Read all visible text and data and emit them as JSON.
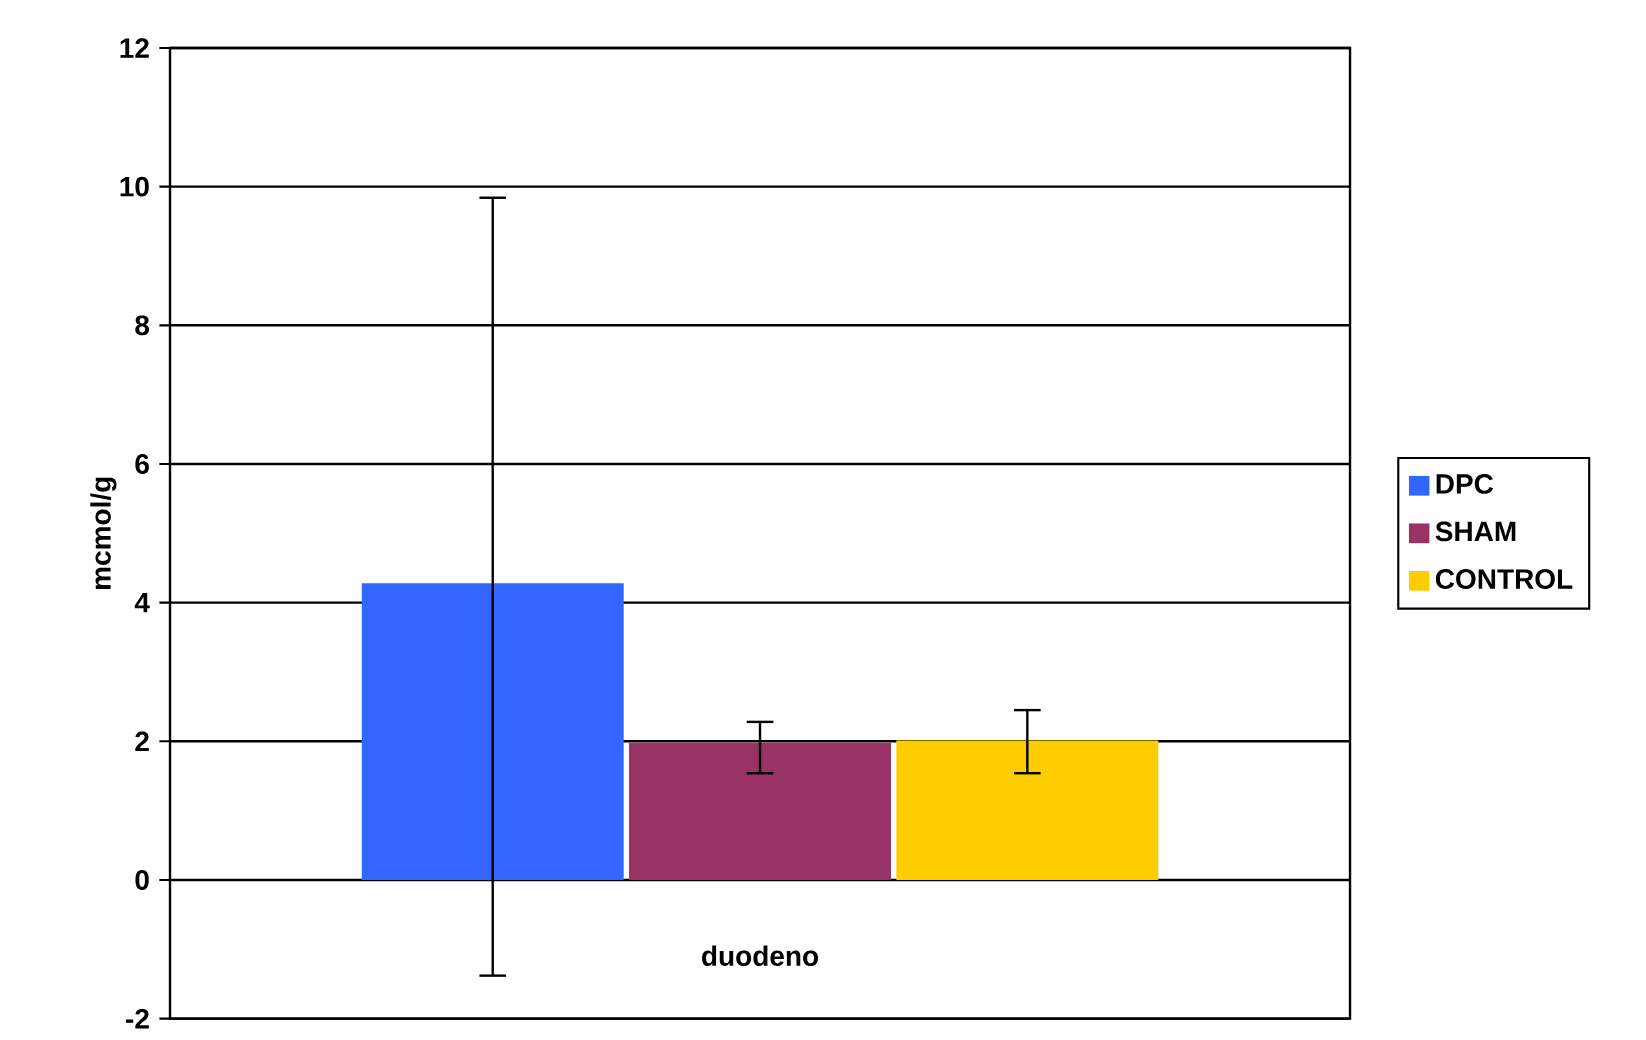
{
  "chart_data": {
    "type": "bar",
    "ylabel": "mcmol/g",
    "categories": [
      "duodeno"
    ],
    "series": [
      {
        "name": "DPC",
        "color": "#3366ff",
        "values": [
          4.28
        ],
        "errors": [
          [
            -1.38,
            9.84
          ]
        ]
      },
      {
        "name": "SHAM",
        "color": "#993366",
        "values": [
          1.98
        ],
        "errors": [
          [
            1.54,
            2.28
          ]
        ]
      },
      {
        "name": "CONTROL",
        "color": "#ffcc00",
        "values": [
          2.01
        ],
        "errors": [
          [
            1.54,
            2.45
          ]
        ]
      }
    ],
    "ylim": [
      -2,
      12
    ],
    "yticks": [
      -2,
      0,
      2,
      4,
      6,
      8,
      10,
      12
    ],
    "grid": "y",
    "legend": "right"
  }
}
